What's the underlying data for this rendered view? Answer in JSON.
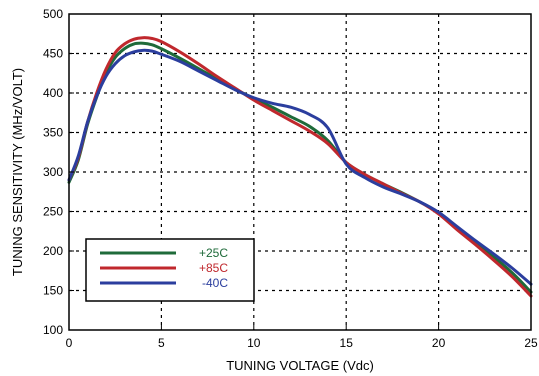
{
  "chart_data": {
    "type": "line",
    "xlabel": "TUNING VOLTAGE (Vdc)",
    "ylabel": "TUNING SENSITIVITY (MHz/VOLT)",
    "xlim": [
      0,
      25
    ],
    "ylim": [
      100,
      500
    ],
    "xticks": [
      0,
      5,
      10,
      15,
      20,
      25
    ],
    "yticks": [
      100,
      150,
      200,
      250,
      300,
      350,
      400,
      450,
      500
    ],
    "xtick_labels": [
      "0",
      "5",
      "10",
      "15",
      "20",
      "25"
    ],
    "ytick_labels": [
      "100",
      "150",
      "200",
      "250",
      "300",
      "350",
      "400",
      "450",
      "500"
    ],
    "grid": true,
    "legend_position": "bottom-left",
    "series": [
      {
        "name": "+25C",
        "color": "#1f6b3a",
        "x": [
          0,
          0.5,
          1,
          1.5,
          2,
          2.5,
          3,
          3.5,
          4,
          4.5,
          5,
          6,
          7,
          8,
          9,
          10,
          11,
          12,
          13,
          14,
          15,
          16,
          17,
          18,
          19,
          20,
          21,
          22,
          23,
          24,
          25
        ],
        "y": [
          287,
          315,
          360,
          395,
          425,
          445,
          456,
          462,
          463,
          461,
          456,
          444,
          431,
          418,
          405,
          393,
          382,
          370,
          358,
          340,
          312,
          297,
          285,
          274,
          262,
          248,
          228,
          210,
          192,
          172,
          148
        ]
      },
      {
        "name": "+85C",
        "color": "#c0282d",
        "x": [
          0,
          0.5,
          1,
          1.5,
          2,
          2.5,
          3,
          3.5,
          4,
          4.5,
          5,
          6,
          7,
          8,
          9,
          10,
          11,
          12,
          13,
          14,
          15,
          16,
          17,
          18,
          19,
          20,
          21,
          22,
          23,
          24,
          25
        ],
        "y": [
          290,
          318,
          363,
          400,
          430,
          451,
          462,
          468,
          470,
          469,
          465,
          452,
          437,
          421,
          406,
          391,
          378,
          365,
          352,
          336,
          312,
          297,
          285,
          273,
          262,
          247,
          227,
          208,
          188,
          167,
          143
        ]
      },
      {
        "name": "-40C",
        "color": "#2b3e9e",
        "x": [
          0,
          0.5,
          1,
          1.5,
          2,
          2.5,
          3,
          3.5,
          4,
          4.5,
          5,
          6,
          7,
          8,
          9,
          10,
          11,
          12,
          13,
          14,
          15,
          16,
          17,
          18,
          19,
          20,
          21,
          22,
          23,
          24,
          25
        ],
        "y": [
          290,
          320,
          363,
          396,
          421,
          437,
          447,
          452,
          454,
          453,
          449,
          440,
          428,
          416,
          404,
          394,
          387,
          382,
          373,
          356,
          310,
          293,
          281,
          272,
          262,
          249,
          231,
          213,
          196,
          178,
          158
        ]
      }
    ]
  }
}
